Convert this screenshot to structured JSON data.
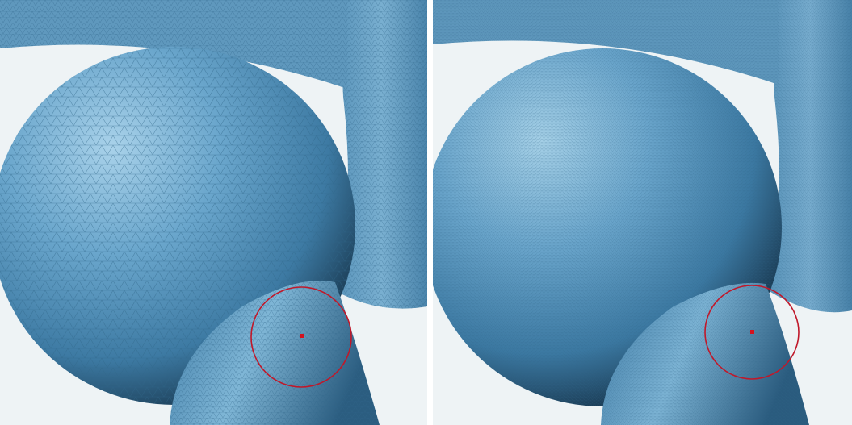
{
  "figure": {
    "panels": [
      {
        "id": "left",
        "mesh_density": "coarse",
        "brush_visible": true
      },
      {
        "id": "right",
        "mesh_density": "fine",
        "brush_visible": true
      }
    ],
    "colors": {
      "background": "#eef3f5",
      "mesh_base": "#4f8fb8",
      "mesh_highlight": "#a9d2ea",
      "mesh_shadow": "#0b1a26",
      "wireframe": "#2f6688",
      "brush_ring": "#c0182a",
      "brush_dot": "#d4121e"
    }
  }
}
